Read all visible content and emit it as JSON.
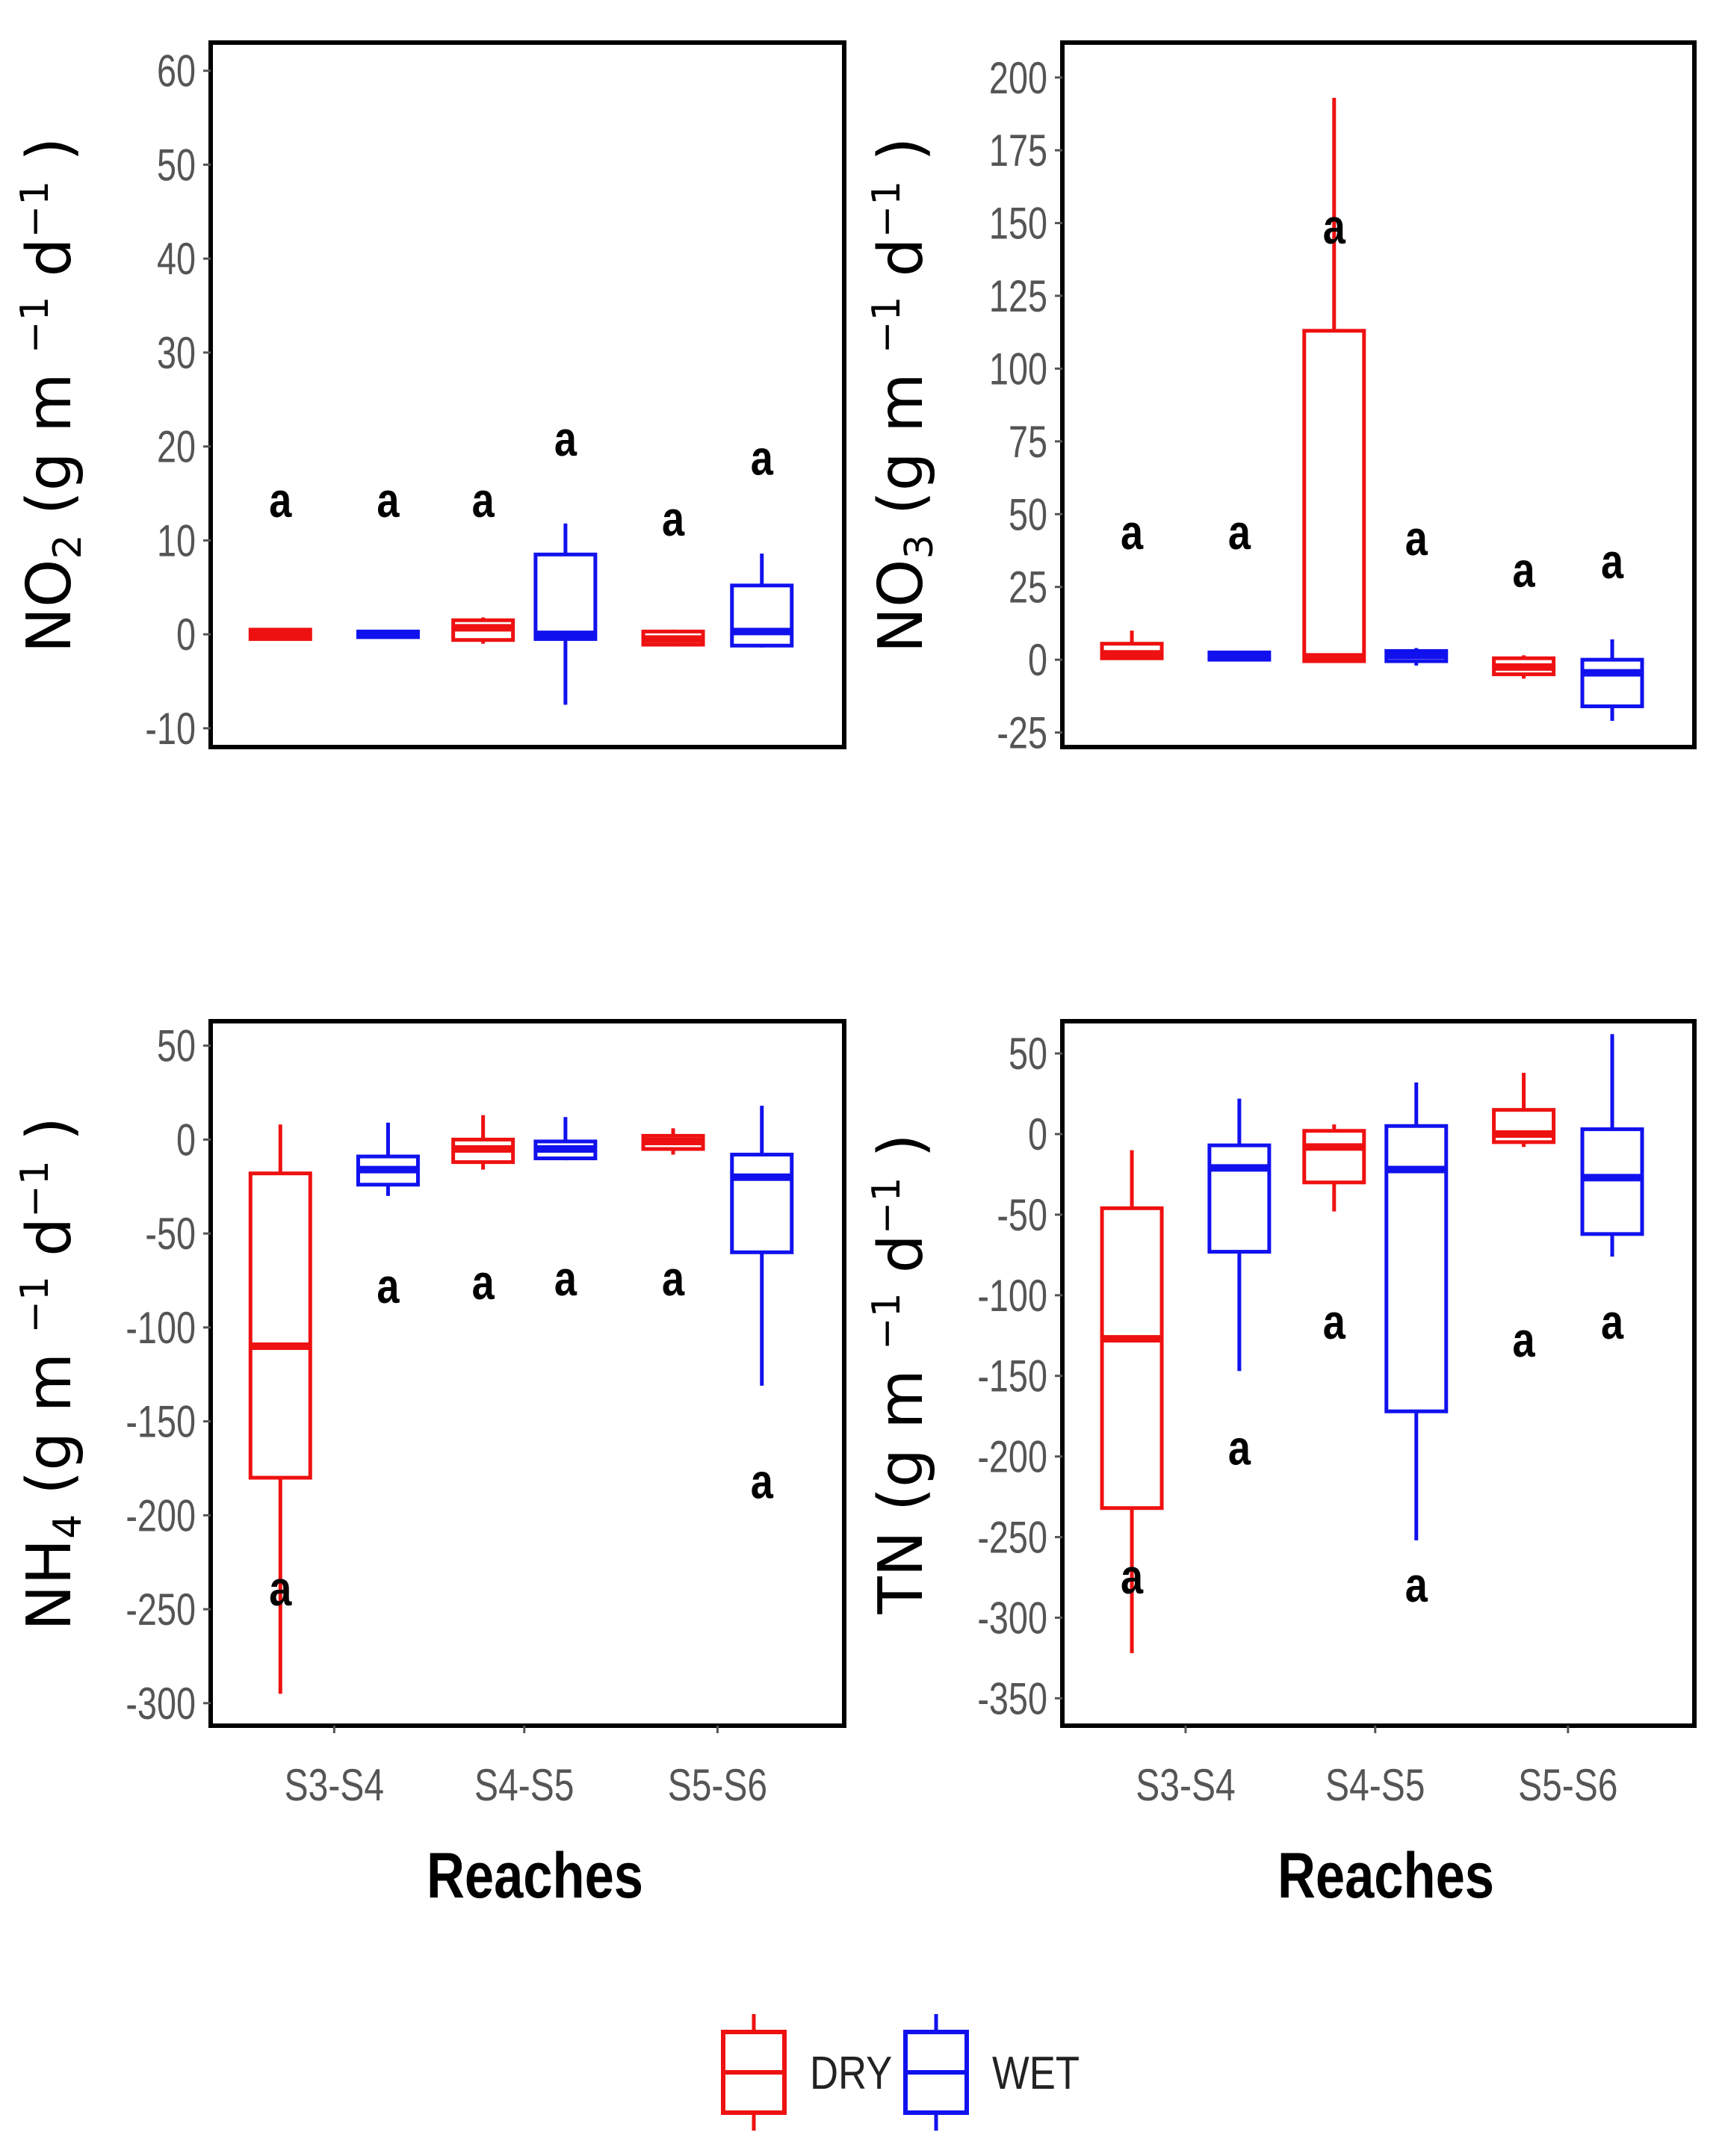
{
  "chart_data": [
    {
      "type": "box",
      "panel": "top-left",
      "ylabel": {
        "main": "NO",
        "sub": "2",
        "units": "(g m",
        "exp1": "−1",
        "d": " d",
        "exp2": "−1",
        "close": ")"
      },
      "ylim": [
        -12,
        63
      ],
      "yticks": [
        "60",
        "50",
        "40",
        "30",
        "20",
        "10",
        "0",
        "-10"
      ],
      "ytick_values": [
        60,
        50,
        40,
        30,
        20,
        10,
        0,
        -10
      ],
      "categories": [
        "S3-S4",
        "S4-S5",
        "S5-S6"
      ],
      "series": [
        {
          "name": "DRY",
          "boxes": [
            {
              "min": -0.6,
              "q1": -0.5,
              "median": 0.0,
              "q3": 0.5,
              "max": 0.6,
              "label": "a",
              "label_y": 12.5
            },
            {
              "min": -1.0,
              "q1": -0.6,
              "median": 0.7,
              "q3": 1.5,
              "max": 1.8,
              "label": "a",
              "label_y": 12.5
            },
            {
              "min": -1.3,
              "q1": -1.1,
              "median": -0.5,
              "q3": 0.3,
              "max": 0.5,
              "label": "a",
              "label_y": 10.5
            }
          ]
        },
        {
          "name": "WET",
          "boxes": [
            {
              "min": -0.4,
              "q1": -0.3,
              "median": 0.0,
              "q3": 0.3,
              "max": 0.4,
              "label": "a",
              "label_y": 12.5
            },
            {
              "min": -7.5,
              "q1": -0.5,
              "median": 0.0,
              "q3": 8.5,
              "max": 11.8,
              "label": "a",
              "label_y": 19.0
            },
            {
              "min": -1.4,
              "q1": -1.2,
              "median": 0.3,
              "q3": 5.2,
              "max": 8.6,
              "label": "a",
              "label_y": 17.0
            }
          ]
        }
      ]
    },
    {
      "type": "box",
      "panel": "top-right",
      "ylabel": {
        "main": "NO",
        "sub": "3",
        "units": "(g m",
        "exp1": "−1",
        "d": " d",
        "exp2": "−1",
        "close": ")"
      },
      "ylim": [
        -30,
        212
      ],
      "yticks": [
        "200",
        "175",
        "150",
        "125",
        "100",
        "75",
        "50",
        "25",
        "0",
        "-25"
      ],
      "ytick_values": [
        200,
        175,
        150,
        125,
        100,
        75,
        50,
        25,
        0,
        -25
      ],
      "categories": [
        "S3-S4",
        "S4-S5",
        "S5-S6"
      ],
      "series": [
        {
          "name": "DRY",
          "boxes": [
            {
              "min": 0.0,
              "q1": 0.5,
              "median": 2.0,
              "q3": 5.5,
              "max": 10.0,
              "label": "a",
              "label_y": 38
            },
            {
              "min": -1.0,
              "q1": -0.5,
              "median": 1.0,
              "q3": 113.0,
              "max": 193.0,
              "label": "a",
              "label_y": 143
            },
            {
              "min": -6.5,
              "q1": -5.0,
              "median": -2.5,
              "q3": 0.5,
              "max": 1.5,
              "label": "a",
              "label_y": 25
            }
          ]
        },
        {
          "name": "WET",
          "boxes": [
            {
              "min": -0.5,
              "q1": 0.0,
              "median": 1.5,
              "q3": 2.5,
              "max": 3.0,
              "label": "a",
              "label_y": 38
            },
            {
              "min": -2.0,
              "q1": -0.5,
              "median": 1.5,
              "q3": 3.0,
              "max": 4.0,
              "label": "a",
              "label_y": 36
            },
            {
              "min": -21.0,
              "q1": -16.0,
              "median": -4.5,
              "q3": 0.0,
              "max": 7.0,
              "label": "a",
              "label_y": 28
            }
          ]
        }
      ]
    },
    {
      "type": "box",
      "panel": "bottom-left",
      "ylabel": {
        "main": "NH",
        "sub": "4",
        "units": "(g m",
        "exp1": "−1",
        "d": " d",
        "exp2": "−1",
        "close": ")"
      },
      "ylim": [
        -312,
        63
      ],
      "yticks": [
        "50",
        "0",
        "-50",
        "-100",
        "-150",
        "-200",
        "-250",
        "-300"
      ],
      "ytick_values": [
        50,
        0,
        -50,
        -100,
        -150,
        -200,
        -250,
        -300
      ],
      "categories": [
        "S3-S4",
        "S4-S5",
        "S5-S6"
      ],
      "series": [
        {
          "name": "DRY",
          "boxes": [
            {
              "min": -295.0,
              "q1": -180.0,
              "median": -110.0,
              "q3": -18.0,
              "max": 8.0,
              "label": "a",
              "label_y": -248
            },
            {
              "min": -16.0,
              "q1": -12.0,
              "median": -5.0,
              "q3": 0.0,
              "max": 13.0,
              "label": "a",
              "label_y": -85
            },
            {
              "min": -8.0,
              "q1": -5.0,
              "median": -1.0,
              "q3": 2.0,
              "max": 6.0,
              "label": "a",
              "label_y": -83
            }
          ]
        },
        {
          "name": "WET",
          "boxes": [
            {
              "min": -30.0,
              "q1": -24.0,
              "median": -16.0,
              "q3": -9.0,
              "max": 9.0,
              "label": "a",
              "label_y": -87
            },
            {
              "min": -11.0,
              "q1": -10.0,
              "median": -5.0,
              "q3": -1.0,
              "max": 12.0,
              "label": "a",
              "label_y": -83
            },
            {
              "min": -131.0,
              "q1": -60.0,
              "median": -20.0,
              "q3": -8.0,
              "max": 18.0,
              "label": "a",
              "label_y": -191
            }
          ]
        }
      ]
    },
    {
      "type": "box",
      "panel": "bottom-right",
      "ylabel": {
        "main": "TN",
        "sub": "",
        "units": "(g m",
        "exp1": "−1",
        "d": " d",
        "exp2": "−1",
        "close": ")"
      },
      "ylim": [
        -367,
        70
      ],
      "yticks": [
        "50",
        "0",
        "-50",
        "-100",
        "-150",
        "-200",
        "-250",
        "-300",
        "-350"
      ],
      "ytick_values": [
        50,
        0,
        -50,
        -100,
        -150,
        -200,
        -250,
        -300,
        -350
      ],
      "categories": [
        "S3-S4",
        "S4-S5",
        "S5-S6"
      ],
      "series": [
        {
          "name": "DRY",
          "boxes": [
            {
              "min": -322.0,
              "q1": -232.0,
              "median": -127.0,
              "q3": -46.0,
              "max": -10.0,
              "label": "a",
              "label_y": -285
            },
            {
              "min": -48.0,
              "q1": -30.0,
              "median": -8.0,
              "q3": 2.0,
              "max": 6.0,
              "label": "a",
              "label_y": -127
            },
            {
              "min": -8.0,
              "q1": -5.0,
              "median": 0.0,
              "q3": 15.0,
              "max": 38.0,
              "label": "a",
              "label_y": -138
            }
          ]
        },
        {
          "name": "WET",
          "boxes": [
            {
              "min": -147.0,
              "q1": -73.0,
              "median": -21.0,
              "q3": -7.0,
              "max": 22.0,
              "label": "a",
              "label_y": -205
            },
            {
              "min": -252.0,
              "q1": -172.0,
              "median": -22.0,
              "q3": 5.0,
              "max": 32.0,
              "label": "a",
              "label_y": -290
            },
            {
              "min": -76.0,
              "q1": -62.0,
              "median": -27.0,
              "q3": 3.0,
              "max": 62.0,
              "label": "a",
              "label_y": -127
            }
          ]
        }
      ]
    }
  ],
  "xlabel": "Reaches",
  "legend": [
    {
      "name": "DRY",
      "color": "#ee1111"
    },
    {
      "name": "WET",
      "color": "#1111ee"
    }
  ]
}
